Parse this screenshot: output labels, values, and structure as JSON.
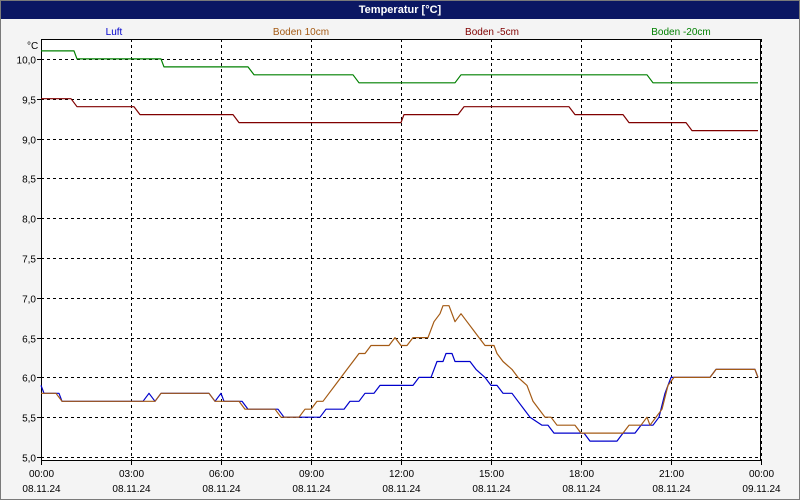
{
  "window": {
    "title": "Temperatur [°C]"
  },
  "chart_data": {
    "type": "line",
    "title": "Temperatur [°C]",
    "ylabel": "°C",
    "ylim": [
      4.95,
      10.25
    ],
    "yticks": [
      5.0,
      5.5,
      6.0,
      6.5,
      7.0,
      7.5,
      8.0,
      8.5,
      9.0,
      9.5,
      10.0
    ],
    "ytick_labels": [
      "5,0",
      "5,5",
      "6,0",
      "6,5",
      "7,0",
      "7,5",
      "8,0",
      "8,5",
      "9,0",
      "9,5",
      "10,0"
    ],
    "xlim": [
      0,
      24
    ],
    "xticks": [
      0,
      3,
      6,
      9,
      12,
      15,
      18,
      21,
      24
    ],
    "xtick_time_labels": [
      "00:00",
      "03:00",
      "06:00",
      "09:00",
      "12:00",
      "15:00",
      "18:00",
      "21:00",
      "00:00"
    ],
    "xtick_date_labels": [
      "08.11.24",
      "08.11.24",
      "08.11.24",
      "08.11.24",
      "08.11.24",
      "08.11.24",
      "08.11.24",
      "08.11.24",
      "09.11.24"
    ],
    "grid": true,
    "legend_position": "top",
    "series": [
      {
        "name": "Luft",
        "color": "#0000cc",
        "points": [
          [
            0,
            5.9
          ],
          [
            0.1,
            5.8
          ],
          [
            0.6,
            5.8
          ],
          [
            0.7,
            5.7
          ],
          [
            3.4,
            5.7
          ],
          [
            3.6,
            5.8
          ],
          [
            3.8,
            5.7
          ],
          [
            4.0,
            5.8
          ],
          [
            5.6,
            5.8
          ],
          [
            5.8,
            5.7
          ],
          [
            6.0,
            5.8
          ],
          [
            6.1,
            5.7
          ],
          [
            6.7,
            5.7
          ],
          [
            6.9,
            5.6
          ],
          [
            7.9,
            5.6
          ],
          [
            8.1,
            5.5
          ],
          [
            9.3,
            5.5
          ],
          [
            9.5,
            5.6
          ],
          [
            10.1,
            5.6
          ],
          [
            10.3,
            5.7
          ],
          [
            10.6,
            5.7
          ],
          [
            10.8,
            5.8
          ],
          [
            11.1,
            5.8
          ],
          [
            11.3,
            5.9
          ],
          [
            12.4,
            5.9
          ],
          [
            12.6,
            6.0
          ],
          [
            13.0,
            6.0
          ],
          [
            13.2,
            6.2
          ],
          [
            13.4,
            6.2
          ],
          [
            13.5,
            6.3
          ],
          [
            13.7,
            6.3
          ],
          [
            13.8,
            6.2
          ],
          [
            14.3,
            6.2
          ],
          [
            14.5,
            6.1
          ],
          [
            14.8,
            6.0
          ],
          [
            15.0,
            5.9
          ],
          [
            15.2,
            5.9
          ],
          [
            15.4,
            5.8
          ],
          [
            15.7,
            5.8
          ],
          [
            15.9,
            5.7
          ],
          [
            16.1,
            5.6
          ],
          [
            16.3,
            5.5
          ],
          [
            16.7,
            5.4
          ],
          [
            16.9,
            5.4
          ],
          [
            17.1,
            5.3
          ],
          [
            18.1,
            5.3
          ],
          [
            18.3,
            5.2
          ],
          [
            19.2,
            5.2
          ],
          [
            19.4,
            5.3
          ],
          [
            19.8,
            5.3
          ],
          [
            20.0,
            5.4
          ],
          [
            20.4,
            5.4
          ],
          [
            20.6,
            5.5
          ],
          [
            20.8,
            5.8
          ],
          [
            21.0,
            6.0
          ],
          [
            22.3,
            6.0
          ],
          [
            22.5,
            6.1
          ],
          [
            23.8,
            6.1
          ],
          [
            23.9,
            6.0
          ]
        ]
      },
      {
        "name": "Boden 10cm",
        "color": "#a45a14",
        "points": [
          [
            0,
            5.8
          ],
          [
            0.5,
            5.8
          ],
          [
            0.7,
            5.7
          ],
          [
            3.8,
            5.7
          ],
          [
            4.0,
            5.8
          ],
          [
            5.6,
            5.8
          ],
          [
            5.8,
            5.7
          ],
          [
            6.6,
            5.7
          ],
          [
            6.8,
            5.6
          ],
          [
            7.8,
            5.6
          ],
          [
            8.0,
            5.5
          ],
          [
            8.6,
            5.5
          ],
          [
            8.8,
            5.6
          ],
          [
            9.0,
            5.6
          ],
          [
            9.2,
            5.7
          ],
          [
            9.4,
            5.7
          ],
          [
            9.6,
            5.8
          ],
          [
            9.8,
            5.9
          ],
          [
            10.0,
            6.0
          ],
          [
            10.2,
            6.1
          ],
          [
            10.4,
            6.2
          ],
          [
            10.6,
            6.3
          ],
          [
            10.8,
            6.3
          ],
          [
            11.0,
            6.4
          ],
          [
            11.6,
            6.4
          ],
          [
            11.8,
            6.5
          ],
          [
            12.0,
            6.4
          ],
          [
            12.2,
            6.4
          ],
          [
            12.4,
            6.5
          ],
          [
            12.9,
            6.5
          ],
          [
            13.1,
            6.7
          ],
          [
            13.3,
            6.8
          ],
          [
            13.4,
            6.9
          ],
          [
            13.6,
            6.9
          ],
          [
            13.8,
            6.7
          ],
          [
            14.0,
            6.8
          ],
          [
            14.2,
            6.7
          ],
          [
            14.4,
            6.6
          ],
          [
            14.6,
            6.5
          ],
          [
            14.8,
            6.4
          ],
          [
            15.1,
            6.4
          ],
          [
            15.2,
            6.3
          ],
          [
            15.4,
            6.2
          ],
          [
            15.7,
            6.1
          ],
          [
            15.9,
            6.0
          ],
          [
            16.2,
            5.9
          ],
          [
            16.4,
            5.7
          ],
          [
            16.6,
            5.6
          ],
          [
            16.8,
            5.5
          ],
          [
            17.0,
            5.5
          ],
          [
            17.2,
            5.4
          ],
          [
            17.8,
            5.4
          ],
          [
            18.0,
            5.3
          ],
          [
            19.4,
            5.3
          ],
          [
            19.6,
            5.4
          ],
          [
            20.0,
            5.4
          ],
          [
            20.2,
            5.5
          ],
          [
            20.3,
            5.4
          ],
          [
            20.5,
            5.5
          ],
          [
            20.7,
            5.6
          ],
          [
            20.9,
            5.9
          ],
          [
            21.1,
            6.0
          ],
          [
            22.3,
            6.0
          ],
          [
            22.5,
            6.1
          ],
          [
            23.8,
            6.1
          ],
          [
            23.9,
            6.0
          ]
        ]
      },
      {
        "name": "Boden -5cm",
        "color": "#800000",
        "points": [
          [
            0,
            9.5
          ],
          [
            1.0,
            9.5
          ],
          [
            1.2,
            9.4
          ],
          [
            3.1,
            9.4
          ],
          [
            3.3,
            9.3
          ],
          [
            6.4,
            9.3
          ],
          [
            6.6,
            9.2
          ],
          [
            12.0,
            9.2
          ],
          [
            12.1,
            9.3
          ],
          [
            13.9,
            9.3
          ],
          [
            14.1,
            9.4
          ],
          [
            17.6,
            9.4
          ],
          [
            17.8,
            9.3
          ],
          [
            19.4,
            9.3
          ],
          [
            19.6,
            9.2
          ],
          [
            21.5,
            9.2
          ],
          [
            21.7,
            9.1
          ],
          [
            23.9,
            9.1
          ]
        ]
      },
      {
        "name": "Boden -20cm",
        "color": "#008000",
        "points": [
          [
            0,
            10.1
          ],
          [
            1.1,
            10.1
          ],
          [
            1.2,
            10.0
          ],
          [
            4.0,
            10.0
          ],
          [
            4.1,
            9.9
          ],
          [
            6.9,
            9.9
          ],
          [
            7.1,
            9.8
          ],
          [
            10.4,
            9.8
          ],
          [
            10.6,
            9.7
          ],
          [
            13.8,
            9.7
          ],
          [
            14.0,
            9.8
          ],
          [
            20.2,
            9.8
          ],
          [
            20.4,
            9.7
          ],
          [
            23.9,
            9.7
          ]
        ]
      }
    ]
  }
}
